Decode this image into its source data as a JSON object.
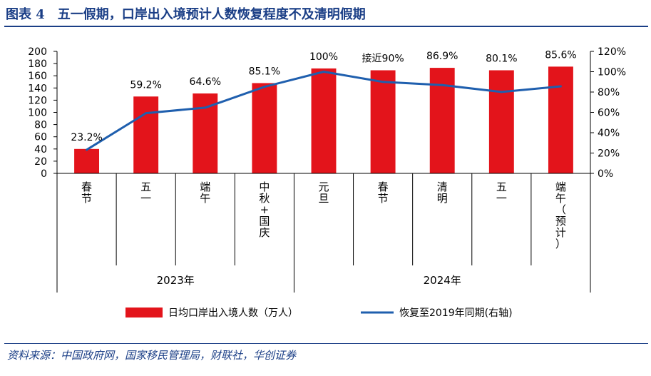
{
  "title": "图表 4　五一假期，口岸出入境预计人数恢复程度不及清明假期",
  "source": "资料来源：中国政府网，国家移民管理局，财联社，华创证券",
  "chart_data": {
    "type": "bar+line",
    "categories": [
      "春节",
      "五一",
      "端午",
      "中秋+国庆",
      "元旦",
      "春节",
      "清明",
      "五一",
      "端午（预计）"
    ],
    "groups": [
      {
        "label": "2023年",
        "start": 0,
        "end": 3
      },
      {
        "label": "2024年",
        "start": 4,
        "end": 8
      }
    ],
    "series": [
      {
        "name": "日均口岸出入境人数（万人）",
        "type": "bar",
        "axis": "left",
        "color": "#e3141b",
        "values": [
          40,
          126,
          131,
          148,
          172,
          169,
          173,
          169,
          175
        ]
      },
      {
        "name": "恢复至2019年同期(右轴)",
        "type": "line",
        "axis": "right",
        "color": "#1f5fae",
        "values": [
          23.2,
          59.2,
          64.6,
          85.1,
          100,
          90,
          86.9,
          80.1,
          85.6
        ]
      }
    ],
    "data_labels": [
      "23.2%",
      "59.2%",
      "64.6%",
      "85.1%",
      "100%",
      "接近90%",
      "86.9%",
      "80.1%",
      "85.6%"
    ],
    "y_left": {
      "min": 0,
      "max": 200,
      "step": 20,
      "ticks": [
        "0",
        "20",
        "40",
        "60",
        "80",
        "100",
        "120",
        "140",
        "160",
        "180",
        "200"
      ]
    },
    "y_right": {
      "min": 0,
      "max": 120,
      "step": 20,
      "ticks": [
        "0%",
        "20%",
        "40%",
        "60%",
        "80%",
        "100%",
        "120%"
      ]
    },
    "legend_position": "bottom"
  }
}
